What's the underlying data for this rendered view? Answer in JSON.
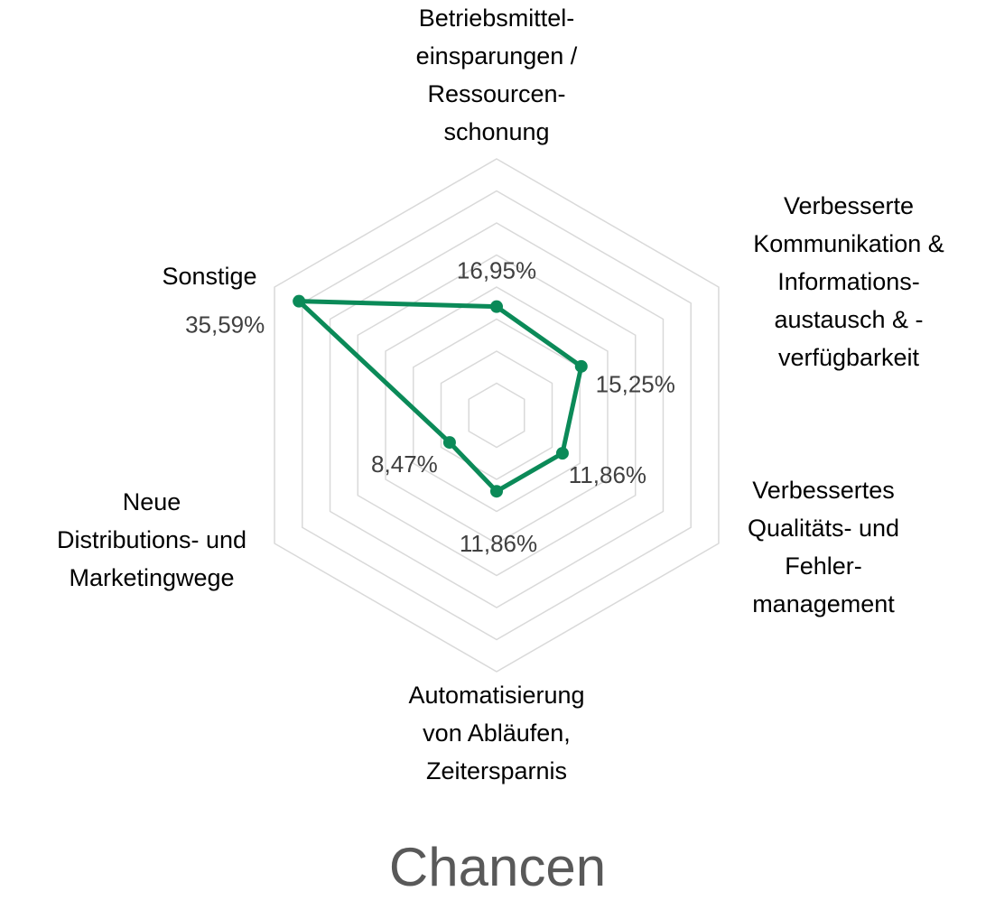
{
  "chart_data": {
    "type": "radar",
    "title": "Chancen",
    "categories": [
      "Betriebsmittel-\neinsparungen /\nRessourcen-\nschonung",
      "Verbesserte\nKommunikation &\nInformations-\naustausch & -\nverfügbarkeit",
      "Verbessertes\nQualitäts- und\nFehler-\nmanagement",
      "Automatisierung\nvon Abläufen,\nZeitersparnis",
      "Neue\nDistributions- und\nMarketingwege",
      "Sonstige"
    ],
    "values": [
      16.95,
      15.25,
      11.86,
      11.86,
      8.47,
      35.59
    ],
    "value_labels": [
      "16,95%",
      "15,25%",
      "11,86%",
      "11,86%",
      "8,47%",
      "35,59%"
    ],
    "color": "#0b8a58",
    "ylim": [
      0,
      40
    ],
    "yticks": [
      5,
      10,
      15,
      20,
      25,
      30,
      35,
      40
    ],
    "grid": true
  }
}
